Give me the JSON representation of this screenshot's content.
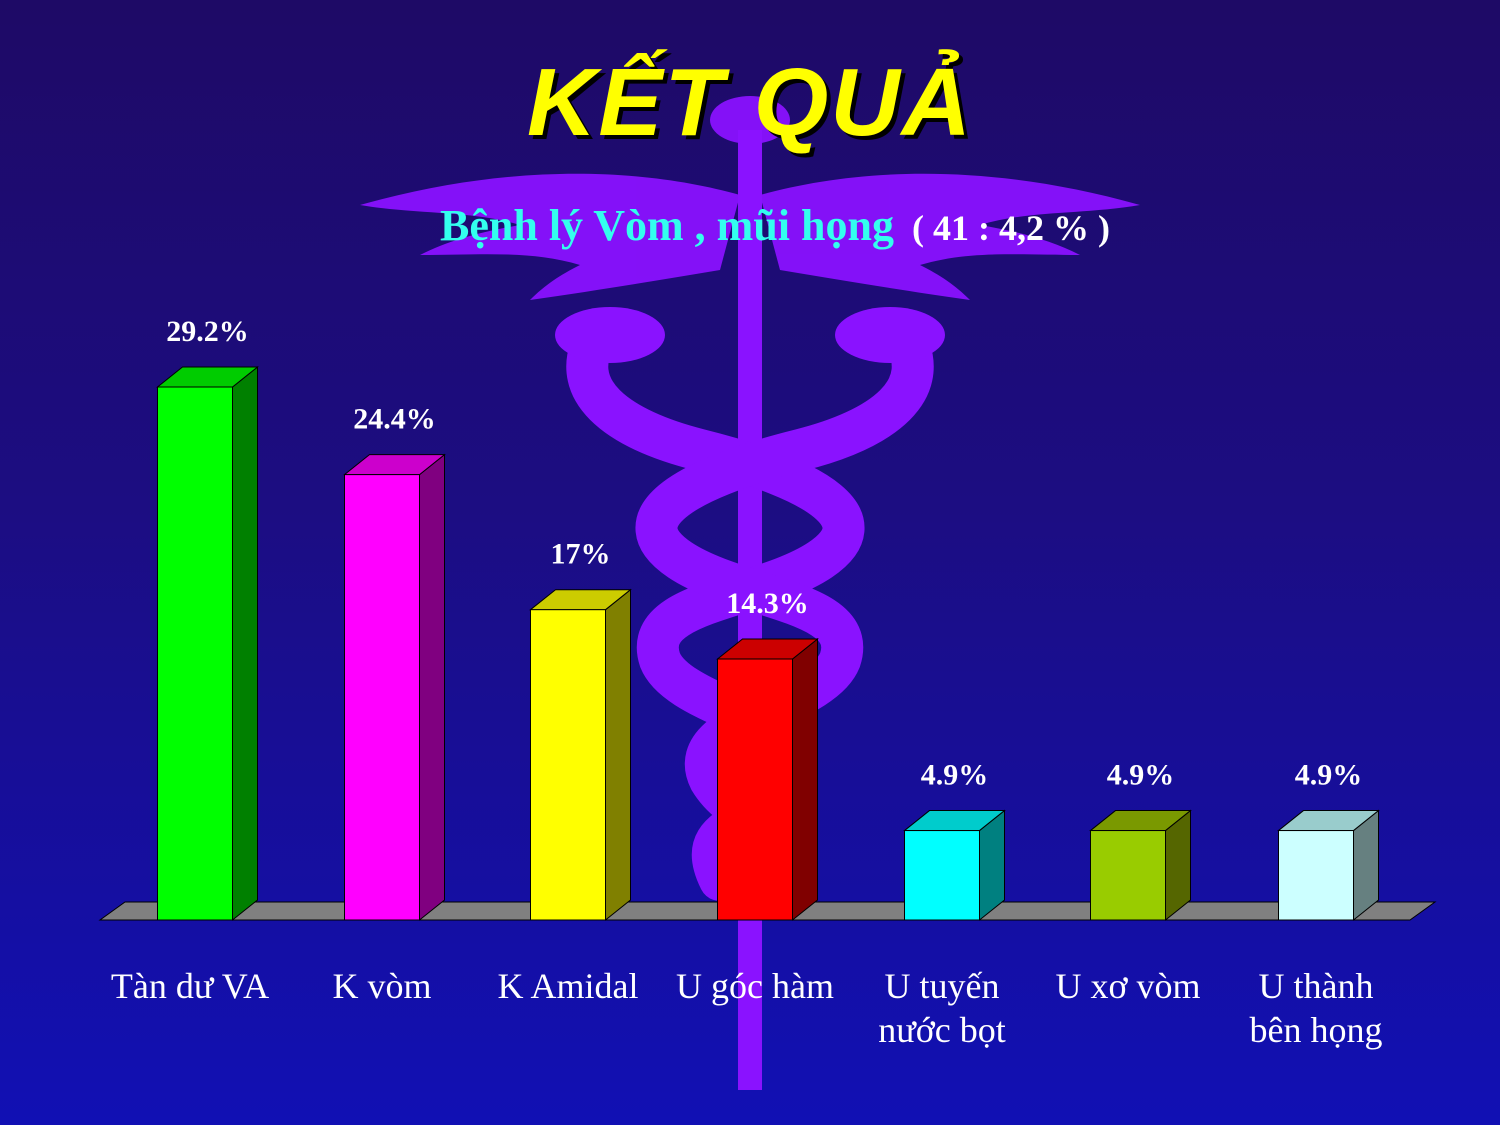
{
  "slide": {
    "title": "KẾT QUẢ",
    "subtitle": "Bệnh lý Vòm , mũi họng",
    "subtitle_note": "( 41 : 4,2 % )"
  },
  "chart_data": {
    "type": "bar",
    "categories": [
      [
        "Tàn dư VA"
      ],
      [
        "K vòm"
      ],
      [
        "K Amidal"
      ],
      [
        "U góc hàm"
      ],
      [
        "U tuyến",
        "nước bọt"
      ],
      [
        "U xơ vòm"
      ],
      [
        "U thành",
        "bên họng"
      ]
    ],
    "values": [
      29.2,
      24.4,
      17,
      14.3,
      4.9,
      4.9,
      4.9
    ],
    "labels": [
      "29.2%",
      "24.4%",
      "17%",
      "14.3%",
      "4.9%",
      "4.9%",
      "4.9%"
    ],
    "colors": [
      "#00ff00",
      "#ff00ff",
      "#ffff00",
      "#ff0000",
      "#00ffff",
      "#99cc00",
      "#ccffff"
    ],
    "side_colors": [
      "#008000",
      "#800080",
      "#808000",
      "#800000",
      "#008080",
      "#556600",
      "#668080"
    ],
    "top_colors": [
      "#00cc00",
      "#cc00cc",
      "#cccc00",
      "#cc0000",
      "#00cccc",
      "#7a9900",
      "#99cccc"
    ],
    "ylim": [
      0,
      29.2
    ],
    "grid": false,
    "legend": "none",
    "depth": "3d"
  }
}
